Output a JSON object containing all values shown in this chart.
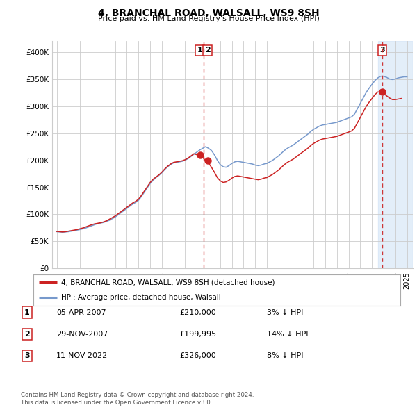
{
  "title": "4, BRANCHAL ROAD, WALSALL, WS9 8SH",
  "subtitle": "Price paid vs. HM Land Registry's House Price Index (HPI)",
  "ylim": [
    0,
    420000
  ],
  "yticks": [
    0,
    50000,
    100000,
    150000,
    200000,
    250000,
    300000,
    350000,
    400000
  ],
  "ytick_labels": [
    "£0",
    "£50K",
    "£100K",
    "£150K",
    "£200K",
    "£250K",
    "£300K",
    "£350K",
    "£400K"
  ],
  "xlim_start": 1994.6,
  "xlim_end": 2025.5,
  "hpi_color": "#7799cc",
  "price_color": "#cc2222",
  "background_color": "#ffffff",
  "grid_color": "#cccccc",
  "transactions": [
    {
      "num": 1,
      "date_label": "05-APR-2007",
      "date_x": 2007.27,
      "price": 210000,
      "price_str": "£210,000",
      "hpi_pct": "3% ↓ HPI"
    },
    {
      "num": 2,
      "date_label": "29-NOV-2007",
      "date_x": 2007.91,
      "price": 199995,
      "price_str": "£199,995",
      "hpi_pct": "14% ↓ HPI"
    },
    {
      "num": 3,
      "date_label": "11-NOV-2022",
      "date_x": 2022.87,
      "price": 326000,
      "price_str": "£326,000",
      "hpi_pct": "8% ↓ HPI"
    }
  ],
  "vline_x_group1": 2007.6,
  "vline_x_group3": 2022.87,
  "shade_x_start": 2022.5,
  "shade_x_end": 2025.5,
  "legend_line1": "4, BRANCHAL ROAD, WALSALL, WS9 8SH (detached house)",
  "legend_line2": "HPI: Average price, detached house, Walsall",
  "footer1": "Contains HM Land Registry data © Crown copyright and database right 2024.",
  "footer2": "This data is licensed under the Open Government Licence v3.0.",
  "hpi_data": [
    [
      1995.0,
      68000
    ],
    [
      1995.25,
      67500
    ],
    [
      1995.5,
      67000
    ],
    [
      1995.75,
      67500
    ],
    [
      1996.0,
      68000
    ],
    [
      1996.25,
      69000
    ],
    [
      1996.5,
      70000
    ],
    [
      1996.75,
      71000
    ],
    [
      1997.0,
      72000
    ],
    [
      1997.25,
      73500
    ],
    [
      1997.5,
      75000
    ],
    [
      1997.75,
      77000
    ],
    [
      1998.0,
      79000
    ],
    [
      1998.25,
      81000
    ],
    [
      1998.5,
      83000
    ],
    [
      1998.75,
      84000
    ],
    [
      1999.0,
      85000
    ],
    [
      1999.25,
      87000
    ],
    [
      1999.5,
      89000
    ],
    [
      1999.75,
      92000
    ],
    [
      2000.0,
      95000
    ],
    [
      2000.25,
      99000
    ],
    [
      2000.5,
      103000
    ],
    [
      2000.75,
      107000
    ],
    [
      2001.0,
      111000
    ],
    [
      2001.25,
      115000
    ],
    [
      2001.5,
      119000
    ],
    [
      2001.75,
      122000
    ],
    [
      2002.0,
      126000
    ],
    [
      2002.25,
      133000
    ],
    [
      2002.5,
      141000
    ],
    [
      2002.75,
      149000
    ],
    [
      2003.0,
      157000
    ],
    [
      2003.25,
      163000
    ],
    [
      2003.5,
      168000
    ],
    [
      2003.75,
      172000
    ],
    [
      2004.0,
      177000
    ],
    [
      2004.25,
      183000
    ],
    [
      2004.5,
      188000
    ],
    [
      2004.75,
      192000
    ],
    [
      2005.0,
      195000
    ],
    [
      2005.25,
      196000
    ],
    [
      2005.5,
      197000
    ],
    [
      2005.75,
      198000
    ],
    [
      2006.0,
      200000
    ],
    [
      2006.25,
      203000
    ],
    [
      2006.5,
      207000
    ],
    [
      2006.75,
      211000
    ],
    [
      2007.0,
      215000
    ],
    [
      2007.25,
      219000
    ],
    [
      2007.5,
      222000
    ],
    [
      2007.75,
      225000
    ],
    [
      2008.0,
      222000
    ],
    [
      2008.25,
      218000
    ],
    [
      2008.5,
      210000
    ],
    [
      2008.75,
      200000
    ],
    [
      2009.0,
      192000
    ],
    [
      2009.25,
      188000
    ],
    [
      2009.5,
      187000
    ],
    [
      2009.75,
      190000
    ],
    [
      2010.0,
      194000
    ],
    [
      2010.25,
      197000
    ],
    [
      2010.5,
      198000
    ],
    [
      2010.75,
      197000
    ],
    [
      2011.0,
      196000
    ],
    [
      2011.25,
      195000
    ],
    [
      2011.5,
      194000
    ],
    [
      2011.75,
      193000
    ],
    [
      2012.0,
      191000
    ],
    [
      2012.25,
      190000
    ],
    [
      2012.5,
      191000
    ],
    [
      2012.75,
      193000
    ],
    [
      2013.0,
      194000
    ],
    [
      2013.25,
      197000
    ],
    [
      2013.5,
      200000
    ],
    [
      2013.75,
      204000
    ],
    [
      2014.0,
      208000
    ],
    [
      2014.25,
      213000
    ],
    [
      2014.5,
      218000
    ],
    [
      2014.75,
      222000
    ],
    [
      2015.0,
      225000
    ],
    [
      2015.25,
      228000
    ],
    [
      2015.5,
      232000
    ],
    [
      2015.75,
      236000
    ],
    [
      2016.0,
      240000
    ],
    [
      2016.25,
      244000
    ],
    [
      2016.5,
      248000
    ],
    [
      2016.75,
      253000
    ],
    [
      2017.0,
      257000
    ],
    [
      2017.25,
      260000
    ],
    [
      2017.5,
      263000
    ],
    [
      2017.75,
      265000
    ],
    [
      2018.0,
      266000
    ],
    [
      2018.25,
      267000
    ],
    [
      2018.5,
      268000
    ],
    [
      2018.75,
      269000
    ],
    [
      2019.0,
      270000
    ],
    [
      2019.25,
      272000
    ],
    [
      2019.5,
      274000
    ],
    [
      2019.75,
      276000
    ],
    [
      2020.0,
      278000
    ],
    [
      2020.25,
      280000
    ],
    [
      2020.5,
      285000
    ],
    [
      2020.75,
      295000
    ],
    [
      2021.0,
      305000
    ],
    [
      2021.25,
      315000
    ],
    [
      2021.5,
      325000
    ],
    [
      2021.75,
      333000
    ],
    [
      2022.0,
      340000
    ],
    [
      2022.25,
      347000
    ],
    [
      2022.5,
      352000
    ],
    [
      2022.75,
      355000
    ],
    [
      2023.0,
      355000
    ],
    [
      2023.25,
      353000
    ],
    [
      2023.5,
      350000
    ],
    [
      2023.75,
      349000
    ],
    [
      2024.0,
      350000
    ],
    [
      2024.25,
      352000
    ],
    [
      2024.5,
      353000
    ],
    [
      2024.75,
      354000
    ],
    [
      2025.0,
      354000
    ]
  ],
  "price_data": [
    [
      1995.0,
      68500
    ],
    [
      1995.25,
      68000
    ],
    [
      1995.5,
      67500
    ],
    [
      1995.75,
      68000
    ],
    [
      1996.0,
      69000
    ],
    [
      1996.25,
      70000
    ],
    [
      1996.5,
      71000
    ],
    [
      1996.75,
      72000
    ],
    [
      1997.0,
      73500
    ],
    [
      1997.25,
      75000
    ],
    [
      1997.5,
      77000
    ],
    [
      1997.75,
      79000
    ],
    [
      1998.0,
      81000
    ],
    [
      1998.25,
      82500
    ],
    [
      1998.5,
      83500
    ],
    [
      1998.75,
      84500
    ],
    [
      1999.0,
      86000
    ],
    [
      1999.25,
      88000
    ],
    [
      1999.5,
      91000
    ],
    [
      1999.75,
      94000
    ],
    [
      2000.0,
      97000
    ],
    [
      2000.25,
      101000
    ],
    [
      2000.5,
      105000
    ],
    [
      2000.75,
      109000
    ],
    [
      2001.0,
      113000
    ],
    [
      2001.25,
      117000
    ],
    [
      2001.5,
      121000
    ],
    [
      2001.75,
      124000
    ],
    [
      2002.0,
      128000
    ],
    [
      2002.25,
      135000
    ],
    [
      2002.5,
      143000
    ],
    [
      2002.75,
      151000
    ],
    [
      2003.0,
      159000
    ],
    [
      2003.25,
      165000
    ],
    [
      2003.5,
      169000
    ],
    [
      2003.75,
      173000
    ],
    [
      2004.0,
      178000
    ],
    [
      2004.25,
      184000
    ],
    [
      2004.5,
      189000
    ],
    [
      2004.75,
      193000
    ],
    [
      2005.0,
      196000
    ],
    [
      2005.25,
      197000
    ],
    [
      2005.5,
      198000
    ],
    [
      2005.75,
      199000
    ],
    [
      2006.0,
      201000
    ],
    [
      2006.25,
      204000
    ],
    [
      2006.5,
      208000
    ],
    [
      2006.75,
      212000
    ],
    [
      2007.0,
      210000
    ],
    [
      2007.27,
      210000
    ],
    [
      2007.5,
      205000
    ],
    [
      2007.75,
      199000
    ],
    [
      2007.91,
      199995
    ],
    [
      2008.0,
      195000
    ],
    [
      2008.25,
      187000
    ],
    [
      2008.5,
      178000
    ],
    [
      2008.75,
      168000
    ],
    [
      2009.0,
      162000
    ],
    [
      2009.25,
      159000
    ],
    [
      2009.5,
      160000
    ],
    [
      2009.75,
      163000
    ],
    [
      2010.0,
      167000
    ],
    [
      2010.25,
      170000
    ],
    [
      2010.5,
      171000
    ],
    [
      2010.75,
      170000
    ],
    [
      2011.0,
      169000
    ],
    [
      2011.25,
      168000
    ],
    [
      2011.5,
      167000
    ],
    [
      2011.75,
      166000
    ],
    [
      2012.0,
      165000
    ],
    [
      2012.25,
      164000
    ],
    [
      2012.5,
      165000
    ],
    [
      2012.75,
      167000
    ],
    [
      2013.0,
      168000
    ],
    [
      2013.25,
      171000
    ],
    [
      2013.5,
      174000
    ],
    [
      2013.75,
      178000
    ],
    [
      2014.0,
      182000
    ],
    [
      2014.25,
      187000
    ],
    [
      2014.5,
      192000
    ],
    [
      2014.75,
      196000
    ],
    [
      2015.0,
      199000
    ],
    [
      2015.25,
      202000
    ],
    [
      2015.5,
      206000
    ],
    [
      2015.75,
      210000
    ],
    [
      2016.0,
      214000
    ],
    [
      2016.25,
      218000
    ],
    [
      2016.5,
      222000
    ],
    [
      2016.75,
      227000
    ],
    [
      2017.0,
      231000
    ],
    [
      2017.25,
      234000
    ],
    [
      2017.5,
      237000
    ],
    [
      2017.75,
      239000
    ],
    [
      2018.0,
      240000
    ],
    [
      2018.25,
      241000
    ],
    [
      2018.5,
      242000
    ],
    [
      2018.75,
      243000
    ],
    [
      2019.0,
      244000
    ],
    [
      2019.25,
      246000
    ],
    [
      2019.5,
      248000
    ],
    [
      2019.75,
      250000
    ],
    [
      2020.0,
      252000
    ],
    [
      2020.25,
      254000
    ],
    [
      2020.5,
      259000
    ],
    [
      2020.75,
      269000
    ],
    [
      2021.0,
      279000
    ],
    [
      2021.25,
      289000
    ],
    [
      2021.5,
      299000
    ],
    [
      2021.75,
      307000
    ],
    [
      2022.0,
      314000
    ],
    [
      2022.25,
      321000
    ],
    [
      2022.5,
      326000
    ],
    [
      2022.87,
      326000
    ],
    [
      2023.0,
      323000
    ],
    [
      2023.25,
      319000
    ],
    [
      2023.5,
      315000
    ],
    [
      2023.75,
      312000
    ],
    [
      2024.0,
      312000
    ],
    [
      2024.25,
      313000
    ],
    [
      2024.5,
      314000
    ]
  ]
}
